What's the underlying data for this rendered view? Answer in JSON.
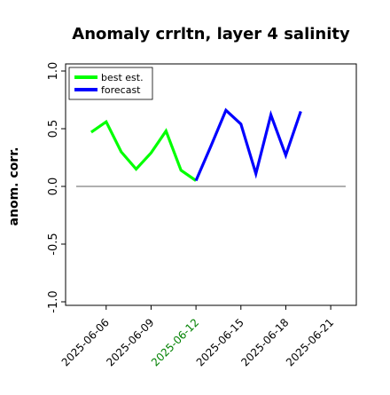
{
  "chart_data": {
    "type": "line",
    "title": "Anomaly crrltn, layer 4 salinity",
    "xlabel": "",
    "ylabel": "anom. corr.",
    "ylim": [
      -1.0,
      1.0
    ],
    "yticks": [
      "-1.0",
      "-0.5",
      "0.0",
      "0.5",
      "1.0"
    ],
    "ytick_values": [
      -1.0,
      -0.5,
      0.0,
      0.5,
      1.0
    ],
    "xlim": [
      "2025-06-04",
      "2025-06-22"
    ],
    "xticks": [
      {
        "label": "2025-06-06",
        "color": "#000000"
      },
      {
        "label": "2025-06-09",
        "color": "#000000"
      },
      {
        "label": "2025-06-12",
        "color": "#008000"
      },
      {
        "label": "2025-06-15",
        "color": "#000000"
      },
      {
        "label": "2025-06-18",
        "color": "#000000"
      },
      {
        "label": "2025-06-21",
        "color": "#000000"
      }
    ],
    "grid": false,
    "reference_line": 0.0,
    "reference_color": "#808080",
    "legend_position": "upper left",
    "series": [
      {
        "name": "best est.",
        "color": "#00ff00",
        "x": [
          "2025-06-05",
          "2025-06-06",
          "2025-06-07",
          "2025-06-08",
          "2025-06-09",
          "2025-06-10",
          "2025-06-11",
          "2025-06-12"
        ],
        "values": [
          0.47,
          0.56,
          0.3,
          0.15,
          0.29,
          0.48,
          0.14,
          0.05
        ]
      },
      {
        "name": "forecast",
        "color": "#0000ff",
        "x": [
          "2025-06-12",
          "2025-06-13",
          "2025-06-14",
          "2025-06-15",
          "2025-06-16",
          "2025-06-17",
          "2025-06-18",
          "2025-06-19"
        ],
        "values": [
          0.05,
          0.35,
          0.66,
          0.54,
          0.11,
          0.62,
          0.27,
          0.65
        ]
      }
    ]
  }
}
